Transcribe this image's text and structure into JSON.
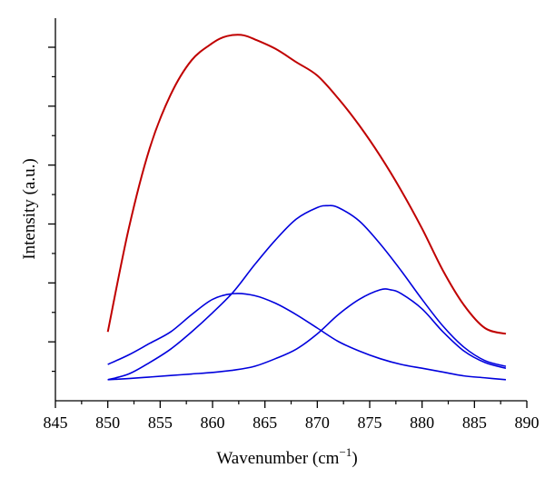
{
  "chart_data": {
    "type": "line",
    "xlabel": "Wavenumber (cm",
    "xlabel_sup": "−1",
    "xlabel_close": ")",
    "ylabel": "Intensity (a.u.)",
    "xlim": [
      845,
      890
    ],
    "ylim": [
      0,
      1
    ],
    "x_ticks": [
      "845",
      "850",
      "855",
      "860",
      "865",
      "870",
      "875",
      "880",
      "885",
      "890"
    ],
    "y_tick_labels_shown": false,
    "grid": false,
    "legend": "none",
    "series": [
      {
        "color": "#c00000",
        "points": [
          [
            850,
            0.18
          ],
          [
            852,
            0.45
          ],
          [
            854,
            0.66
          ],
          [
            856,
            0.8
          ],
          [
            858,
            0.89
          ],
          [
            860,
            0.935
          ],
          [
            861,
            0.95
          ],
          [
            862,
            0.956
          ],
          [
            863,
            0.955
          ],
          [
            864,
            0.945
          ],
          [
            866,
            0.92
          ],
          [
            868,
            0.885
          ],
          [
            870,
            0.85
          ],
          [
            872,
            0.79
          ],
          [
            874,
            0.72
          ],
          [
            876,
            0.64
          ],
          [
            878,
            0.55
          ],
          [
            880,
            0.45
          ],
          [
            882,
            0.34
          ],
          [
            884,
            0.25
          ],
          [
            886,
            0.19
          ],
          [
            888,
            0.175
          ]
        ]
      },
      {
        "color": "#0000dd",
        "points": [
          [
            850,
            0.095
          ],
          [
            852,
            0.12
          ],
          [
            854,
            0.15
          ],
          [
            856,
            0.18
          ],
          [
            858,
            0.225
          ],
          [
            860,
            0.265
          ],
          [
            862,
            0.28
          ],
          [
            864,
            0.275
          ],
          [
            866,
            0.255
          ],
          [
            868,
            0.225
          ],
          [
            870,
            0.19
          ],
          [
            872,
            0.155
          ],
          [
            874,
            0.13
          ],
          [
            876,
            0.11
          ],
          [
            878,
            0.095
          ],
          [
            880,
            0.085
          ],
          [
            882,
            0.075
          ],
          [
            884,
            0.065
          ],
          [
            886,
            0.06
          ],
          [
            888,
            0.055
          ]
        ]
      },
      {
        "color": "#0000dd",
        "points": [
          [
            850,
            0.055
          ],
          [
            852,
            0.07
          ],
          [
            854,
            0.1
          ],
          [
            856,
            0.135
          ],
          [
            858,
            0.18
          ],
          [
            860,
            0.23
          ],
          [
            862,
            0.285
          ],
          [
            864,
            0.355
          ],
          [
            866,
            0.42
          ],
          [
            868,
            0.475
          ],
          [
            870,
            0.505
          ],
          [
            871,
            0.51
          ],
          [
            872,
            0.505
          ],
          [
            874,
            0.47
          ],
          [
            876,
            0.41
          ],
          [
            878,
            0.34
          ],
          [
            880,
            0.265
          ],
          [
            882,
            0.195
          ],
          [
            884,
            0.14
          ],
          [
            886,
            0.105
          ],
          [
            888,
            0.09
          ]
        ]
      },
      {
        "color": "#0000dd",
        "points": [
          [
            850,
            0.055
          ],
          [
            852,
            0.058
          ],
          [
            854,
            0.062
          ],
          [
            856,
            0.066
          ],
          [
            858,
            0.07
          ],
          [
            860,
            0.074
          ],
          [
            862,
            0.08
          ],
          [
            864,
            0.09
          ],
          [
            866,
            0.11
          ],
          [
            868,
            0.135
          ],
          [
            870,
            0.175
          ],
          [
            872,
            0.225
          ],
          [
            874,
            0.265
          ],
          [
            876,
            0.29
          ],
          [
            877,
            0.29
          ],
          [
            878,
            0.28
          ],
          [
            880,
            0.24
          ],
          [
            882,
            0.18
          ],
          [
            884,
            0.13
          ],
          [
            886,
            0.1
          ],
          [
            888,
            0.085
          ]
        ]
      }
    ]
  }
}
